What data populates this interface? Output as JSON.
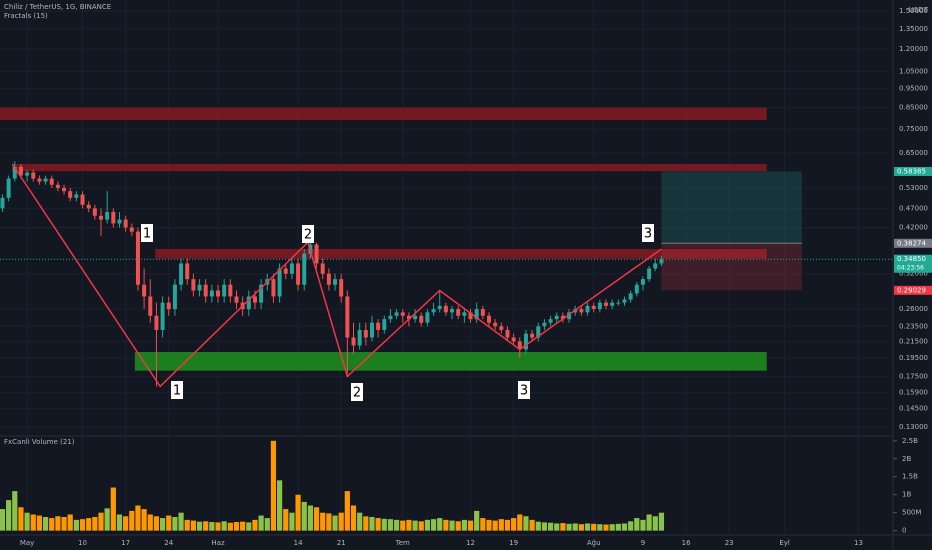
{
  "chart_data": {
    "type": "candlestick",
    "title": "Chiliz / TetherUS, 1G, BINANCE",
    "indicator": "Fractals (15)",
    "volume_title": "FxCanli Volume (21)",
    "currency": "USDT",
    "countdown": "04:23:56",
    "log_scale": true,
    "grid": true,
    "up_color": "#26a69a",
    "down_color": "#ef5350",
    "volume_up_color": "#8bc34a",
    "volume_down_color": "#ff9800",
    "xlim": [
      -4.4,
      140.6
    ],
    "xticks": [
      {
        "value": 0,
        "label": "May"
      },
      {
        "value": 9,
        "label": "10"
      },
      {
        "value": 16,
        "label": "17"
      },
      {
        "value": 23,
        "label": "24"
      },
      {
        "value": 31,
        "label": "Haz"
      },
      {
        "value": 44,
        "label": "14"
      },
      {
        "value": 51,
        "label": "21"
      },
      {
        "value": 61,
        "label": "Tem"
      },
      {
        "value": 72,
        "label": "12"
      },
      {
        "value": 79,
        "label": "19"
      },
      {
        "value": 92,
        "label": "Ağu"
      },
      {
        "value": 100,
        "label": "9"
      },
      {
        "value": 107,
        "label": "16"
      },
      {
        "value": 114,
        "label": "23"
      },
      {
        "value": 123,
        "label": "Eyl"
      },
      {
        "value": 135,
        "label": "13"
      }
    ],
    "ylim": [
      0.124,
      1.6
    ],
    "yticks": [
      {
        "value": 1.5,
        "label": "1.50000"
      },
      {
        "value": 1.35,
        "label": "1.35000"
      },
      {
        "value": 1.2,
        "label": "1.20000"
      },
      {
        "value": 1.05,
        "label": "1.05000"
      },
      {
        "value": 0.95,
        "label": "0.95000"
      },
      {
        "value": 0.85,
        "label": "0.85000"
      },
      {
        "value": 0.75,
        "label": "0.75000"
      },
      {
        "value": 0.65,
        "label": "0.65000"
      },
      {
        "value": 0.53,
        "label": "0.53000"
      },
      {
        "value": 0.47,
        "label": "0.47000"
      },
      {
        "value": 0.42,
        "label": "0.42000"
      },
      {
        "value": 0.32,
        "label": "0.32000"
      },
      {
        "value": 0.26,
        "label": "0.26000"
      },
      {
        "value": 0.235,
        "label": "0.23500"
      },
      {
        "value": 0.215,
        "label": "0.21500"
      },
      {
        "value": 0.195,
        "label": "0.19500"
      },
      {
        "value": 0.175,
        "label": "0.17500"
      },
      {
        "value": 0.159,
        "label": "0.15900"
      },
      {
        "value": 0.145,
        "label": "0.14500"
      },
      {
        "value": 0.13,
        "label": "0.13000"
      }
    ],
    "price_tags": [
      {
        "value": 0.58385,
        "color": "#22ab94"
      },
      {
        "value": 0.38274,
        "color": "#787b86"
      },
      {
        "value": 0.3485,
        "label": "0.34850",
        "color": "#22ab94"
      },
      {
        "value": 0.29029,
        "color": "#f23645"
      }
    ],
    "candles": [
      [
        -4,
        0.47,
        0.51,
        0.46,
        0.5
      ],
      [
        -3,
        0.5,
        0.57,
        0.49,
        0.56
      ],
      [
        -2,
        0.56,
        0.62,
        0.55,
        0.6
      ],
      [
        -1,
        0.6,
        0.61,
        0.56,
        0.57
      ],
      [
        0,
        0.57,
        0.59,
        0.55,
        0.58
      ],
      [
        1,
        0.58,
        0.59,
        0.55,
        0.56
      ],
      [
        2,
        0.56,
        0.57,
        0.54,
        0.55
      ],
      [
        3,
        0.55,
        0.57,
        0.54,
        0.56
      ],
      [
        4,
        0.56,
        0.57,
        0.53,
        0.54
      ],
      [
        5,
        0.54,
        0.55,
        0.52,
        0.53
      ],
      [
        6,
        0.53,
        0.54,
        0.51,
        0.52
      ],
      [
        7,
        0.52,
        0.53,
        0.49,
        0.5
      ],
      [
        8,
        0.5,
        0.52,
        0.49,
        0.51
      ],
      [
        9,
        0.51,
        0.52,
        0.47,
        0.48
      ],
      [
        10,
        0.48,
        0.49,
        0.46,
        0.47
      ],
      [
        11,
        0.47,
        0.48,
        0.44,
        0.45
      ],
      [
        12,
        0.45,
        0.47,
        0.4,
        0.44
      ],
      [
        13,
        0.44,
        0.52,
        0.43,
        0.46
      ],
      [
        14,
        0.46,
        0.47,
        0.42,
        0.43
      ],
      [
        15,
        0.43,
        0.46,
        0.42,
        0.44
      ],
      [
        16,
        0.44,
        0.45,
        0.41,
        0.42
      ],
      [
        17,
        0.42,
        0.43,
        0.4,
        0.41
      ],
      [
        18,
        0.41,
        0.42,
        0.29,
        0.3
      ],
      [
        19,
        0.3,
        0.33,
        0.26,
        0.28
      ],
      [
        20,
        0.28,
        0.31,
        0.24,
        0.25
      ],
      [
        21,
        0.25,
        0.27,
        0.165,
        0.23
      ],
      [
        22,
        0.23,
        0.28,
        0.22,
        0.27
      ],
      [
        23,
        0.27,
        0.28,
        0.25,
        0.26
      ],
      [
        24,
        0.26,
        0.31,
        0.25,
        0.3
      ],
      [
        25,
        0.3,
        0.35,
        0.29,
        0.34
      ],
      [
        26,
        0.34,
        0.35,
        0.3,
        0.31
      ],
      [
        27,
        0.31,
        0.32,
        0.28,
        0.29
      ],
      [
        28,
        0.29,
        0.31,
        0.28,
        0.3
      ],
      [
        29,
        0.3,
        0.31,
        0.27,
        0.28
      ],
      [
        30,
        0.28,
        0.3,
        0.27,
        0.29
      ],
      [
        31,
        0.29,
        0.3,
        0.27,
        0.28
      ],
      [
        32,
        0.28,
        0.31,
        0.27,
        0.3
      ],
      [
        33,
        0.3,
        0.31,
        0.27,
        0.28
      ],
      [
        34,
        0.28,
        0.29,
        0.26,
        0.27
      ],
      [
        35,
        0.27,
        0.28,
        0.25,
        0.26
      ],
      [
        36,
        0.26,
        0.29,
        0.25,
        0.28
      ],
      [
        37,
        0.28,
        0.29,
        0.26,
        0.27
      ],
      [
        38,
        0.27,
        0.31,
        0.26,
        0.3
      ],
      [
        39,
        0.3,
        0.32,
        0.29,
        0.31
      ],
      [
        40,
        0.31,
        0.32,
        0.27,
        0.28
      ],
      [
        41,
        0.28,
        0.34,
        0.27,
        0.33
      ],
      [
        42,
        0.33,
        0.34,
        0.31,
        0.32
      ],
      [
        43,
        0.32,
        0.35,
        0.31,
        0.34
      ],
      [
        44,
        0.34,
        0.35,
        0.29,
        0.3
      ],
      [
        45,
        0.3,
        0.37,
        0.29,
        0.36
      ],
      [
        46,
        0.36,
        0.39,
        0.35,
        0.38
      ],
      [
        47,
        0.38,
        0.385,
        0.33,
        0.34
      ],
      [
        48,
        0.34,
        0.35,
        0.31,
        0.32
      ],
      [
        49,
        0.32,
        0.33,
        0.29,
        0.3
      ],
      [
        50,
        0.3,
        0.32,
        0.29,
        0.31
      ],
      [
        51,
        0.31,
        0.32,
        0.27,
        0.28
      ],
      [
        52,
        0.28,
        0.29,
        0.175,
        0.22
      ],
      [
        53,
        0.22,
        0.24,
        0.2,
        0.21
      ],
      [
        54,
        0.21,
        0.24,
        0.205,
        0.23
      ],
      [
        55,
        0.23,
        0.24,
        0.21,
        0.22
      ],
      [
        56,
        0.22,
        0.25,
        0.215,
        0.24
      ],
      [
        57,
        0.24,
        0.245,
        0.22,
        0.23
      ],
      [
        58,
        0.23,
        0.25,
        0.225,
        0.245
      ],
      [
        59,
        0.245,
        0.26,
        0.24,
        0.25
      ],
      [
        60,
        0.25,
        0.26,
        0.245,
        0.255
      ],
      [
        61,
        0.255,
        0.26,
        0.24,
        0.25
      ],
      [
        62,
        0.25,
        0.255,
        0.235,
        0.245
      ],
      [
        63,
        0.245,
        0.26,
        0.24,
        0.25
      ],
      [
        64,
        0.25,
        0.255,
        0.235,
        0.24
      ],
      [
        65,
        0.24,
        0.26,
        0.235,
        0.255
      ],
      [
        66,
        0.255,
        0.27,
        0.25,
        0.26
      ],
      [
        67,
        0.26,
        0.29,
        0.255,
        0.265
      ],
      [
        68,
        0.265,
        0.27,
        0.25,
        0.255
      ],
      [
        69,
        0.255,
        0.265,
        0.245,
        0.26
      ],
      [
        70,
        0.26,
        0.265,
        0.245,
        0.25
      ],
      [
        71,
        0.25,
        0.26,
        0.24,
        0.255
      ],
      [
        72,
        0.255,
        0.26,
        0.24,
        0.245
      ],
      [
        73,
        0.245,
        0.27,
        0.24,
        0.26
      ],
      [
        74,
        0.26,
        0.265,
        0.245,
        0.25
      ],
      [
        75,
        0.25,
        0.255,
        0.235,
        0.24
      ],
      [
        76,
        0.24,
        0.245,
        0.23,
        0.235
      ],
      [
        77,
        0.235,
        0.24,
        0.225,
        0.23
      ],
      [
        78,
        0.23,
        0.235,
        0.215,
        0.22
      ],
      [
        79,
        0.22,
        0.225,
        0.21,
        0.215
      ],
      [
        80,
        0.215,
        0.22,
        0.195,
        0.205
      ],
      [
        81,
        0.205,
        0.23,
        0.2,
        0.225
      ],
      [
        82,
        0.225,
        0.23,
        0.215,
        0.22
      ],
      [
        83,
        0.22,
        0.24,
        0.215,
        0.235
      ],
      [
        84,
        0.235,
        0.245,
        0.23,
        0.24
      ],
      [
        85,
        0.24,
        0.25,
        0.235,
        0.245
      ],
      [
        86,
        0.245,
        0.255,
        0.24,
        0.25
      ],
      [
        87,
        0.25,
        0.255,
        0.24,
        0.245
      ],
      [
        88,
        0.245,
        0.26,
        0.24,
        0.255
      ],
      [
        89,
        0.255,
        0.265,
        0.25,
        0.26
      ],
      [
        90,
        0.26,
        0.265,
        0.25,
        0.255
      ],
      [
        91,
        0.255,
        0.27,
        0.25,
        0.265
      ],
      [
        92,
        0.265,
        0.27,
        0.255,
        0.26
      ],
      [
        93,
        0.26,
        0.275,
        0.255,
        0.27
      ],
      [
        94,
        0.27,
        0.275,
        0.26,
        0.265
      ],
      [
        95,
        0.265,
        0.275,
        0.26,
        0.27
      ],
      [
        96,
        0.27,
        0.275,
        0.265,
        0.27
      ],
      [
        97,
        0.27,
        0.28,
        0.265,
        0.275
      ],
      [
        98,
        0.275,
        0.29,
        0.27,
        0.285
      ],
      [
        99,
        0.285,
        0.305,
        0.28,
        0.3
      ],
      [
        100,
        0.3,
        0.315,
        0.29,
        0.31
      ],
      [
        101,
        0.31,
        0.335,
        0.305,
        0.33
      ],
      [
        102,
        0.33,
        0.35,
        0.325,
        0.34
      ],
      [
        103,
        0.34,
        0.355,
        0.335,
        0.3485
      ]
    ],
    "volume": [
      600,
      850,
      1100,
      650,
      500,
      450,
      420,
      380,
      350,
      400,
      380,
      450,
      300,
      320,
      350,
      380,
      500,
      620,
      1200,
      450,
      400,
      550,
      700,
      600,
      450,
      400,
      350,
      420,
      380,
      500,
      300,
      280,
      250,
      260,
      240,
      230,
      260,
      220,
      240,
      250,
      230,
      300,
      420,
      350,
      2500,
      1400,
      600,
      500,
      1000,
      800,
      700,
      650,
      500,
      480,
      420,
      500,
      1100,
      700,
      500,
      400,
      380,
      350,
      330,
      320,
      300,
      280,
      300,
      280,
      260,
      300,
      320,
      350,
      300,
      280,
      260,
      300,
      280,
      550,
      350,
      300,
      280,
      320,
      300,
      350,
      450,
      400,
      300,
      250,
      230,
      220,
      200,
      210,
      190,
      200,
      180,
      200,
      190,
      180,
      170,
      180,
      190,
      200,
      260,
      350,
      300,
      450,
      400,
      500
    ],
    "vylim": [
      -121,
      2606
    ],
    "vyticks": [
      {
        "value": 2500,
        "label": "2.5B"
      },
      {
        "value": 2000,
        "label": "2B"
      },
      {
        "value": 1500,
        "label": "1.5B"
      },
      {
        "value": 1000,
        "label": "1B"
      },
      {
        "value": 500,
        "label": "500M"
      },
      0
    ],
    "zones": [
      {
        "x": [
          -4.4,
          120.1
        ],
        "y": [
          0.79,
          0.85
        ],
        "color": "#801922"
      },
      {
        "x": [
          -2.45,
          120.1
        ],
        "y": [
          0.585,
          0.61
        ],
        "color": "#801922"
      },
      {
        "x": [
          20.8,
          120.1
        ],
        "y": [
          0.35,
          0.37
        ],
        "color": "#801922"
      },
      {
        "x": [
          17.5,
          120.1
        ],
        "y": [
          0.181,
          0.202
        ],
        "color": "#1e8a1e"
      }
    ],
    "position": {
      "x": [
        103,
        125.8
      ],
      "entry": 0.38274,
      "target": 0.58385,
      "stop": 0.29029
    },
    "zigzag": {
      "x": [
        -2.4,
        21.6,
        45.6,
        52,
        67,
        80,
        103
      ],
      "values": [
        0.61,
        0.165,
        0.385,
        0.175,
        0.29,
        0.205,
        0.37
      ],
      "color": "#f23645"
    },
    "wave_labels": [
      "1",
      "2",
      "3",
      "1",
      "2",
      "3"
    ]
  }
}
